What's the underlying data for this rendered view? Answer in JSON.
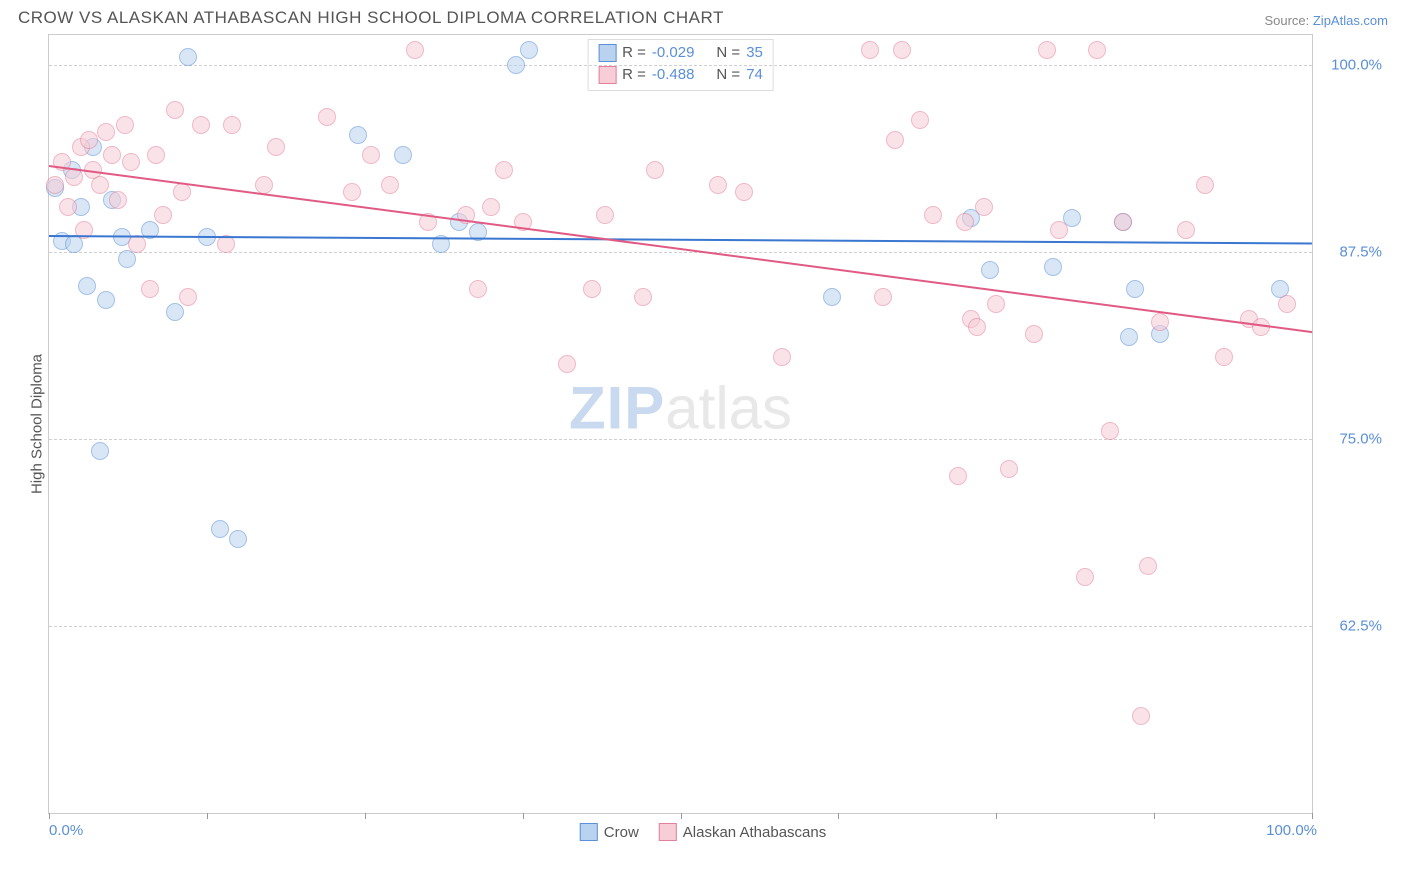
{
  "title": "CROW VS ALASKAN ATHABASCAN HIGH SCHOOL DIPLOMA CORRELATION CHART",
  "source_prefix": "Source: ",
  "source_link": "ZipAtlas.com",
  "y_axis_label": "High School Diploma",
  "watermark": {
    "part1": "ZIP",
    "part2": "atlas"
  },
  "chart": {
    "type": "scatter",
    "background_color": "#ffffff",
    "grid_color": "#d0d0d0",
    "border_color": "#cccccc",
    "xlim": [
      0,
      100
    ],
    "ylim": [
      50,
      102
    ],
    "x_ticks": [
      0,
      12.5,
      25,
      37.5,
      50,
      62.5,
      75,
      87.5,
      100
    ],
    "x_tick_labels": {
      "0": "0.0%",
      "100": "100.0%"
    },
    "y_gridlines": [
      62.5,
      75.0,
      87.5,
      100.0
    ],
    "y_tick_labels": [
      "62.5%",
      "75.0%",
      "87.5%",
      "100.0%"
    ],
    "point_radius": 9,
    "point_opacity": 0.55,
    "series": [
      {
        "name": "Crow",
        "fill": "#b9d2f0",
        "stroke": "#5b8fd6",
        "R": "-0.029",
        "N": "35",
        "trend": {
          "y_at_x0": 88.6,
          "y_at_x100": 88.1,
          "color": "#3a77d0",
          "width": 2
        },
        "points": [
          [
            0.5,
            91.8
          ],
          [
            1.0,
            88.2
          ],
          [
            1.8,
            93.0
          ],
          [
            2.0,
            88.0
          ],
          [
            2.5,
            90.5
          ],
          [
            3.0,
            85.2
          ],
          [
            3.5,
            94.5
          ],
          [
            4.0,
            74.2
          ],
          [
            4.5,
            84.3
          ],
          [
            5.0,
            91.0
          ],
          [
            5.8,
            88.5
          ],
          [
            6.2,
            87.0
          ],
          [
            8.0,
            89.0
          ],
          [
            10.0,
            83.5
          ],
          [
            11.0,
            100.5
          ],
          [
            12.5,
            88.5
          ],
          [
            13.5,
            69.0
          ],
          [
            15.0,
            68.3
          ],
          [
            24.5,
            95.3
          ],
          [
            28.0,
            94.0
          ],
          [
            31.0,
            88.0
          ],
          [
            32.5,
            89.5
          ],
          [
            34.0,
            88.8
          ],
          [
            37.0,
            100.0
          ],
          [
            38.0,
            101.0
          ],
          [
            62.0,
            84.5
          ],
          [
            73.0,
            89.8
          ],
          [
            74.5,
            86.3
          ],
          [
            79.5,
            86.5
          ],
          [
            81.0,
            89.8
          ],
          [
            85.5,
            81.8
          ],
          [
            85.0,
            89.5
          ],
          [
            86.0,
            85.0
          ],
          [
            88.0,
            82.0
          ],
          [
            97.5,
            85.0
          ]
        ]
      },
      {
        "name": "Alaskan Athabascans",
        "fill": "#f7cdd7",
        "stroke": "#e37f9a",
        "R": "-0.488",
        "N": "74",
        "trend": {
          "y_at_x0": 93.3,
          "y_at_x100": 82.2,
          "color": "#e05a84",
          "width": 2
        },
        "points": [
          [
            0.5,
            92.0
          ],
          [
            1.0,
            93.5
          ],
          [
            1.5,
            90.5
          ],
          [
            2.0,
            92.5
          ],
          [
            2.5,
            94.5
          ],
          [
            2.8,
            89.0
          ],
          [
            3.2,
            95.0
          ],
          [
            3.5,
            93.0
          ],
          [
            4.0,
            92.0
          ],
          [
            4.5,
            95.5
          ],
          [
            5.0,
            94.0
          ],
          [
            5.5,
            91.0
          ],
          [
            6.0,
            96.0
          ],
          [
            6.5,
            93.5
          ],
          [
            7.0,
            88.0
          ],
          [
            8.0,
            85.0
          ],
          [
            8.5,
            94.0
          ],
          [
            9.0,
            90.0
          ],
          [
            10.0,
            97.0
          ],
          [
            10.5,
            91.5
          ],
          [
            11.0,
            84.5
          ],
          [
            12.0,
            96.0
          ],
          [
            14.0,
            88.0
          ],
          [
            14.5,
            96.0
          ],
          [
            17.0,
            92.0
          ],
          [
            18.0,
            94.5
          ],
          [
            22.0,
            96.5
          ],
          [
            24.0,
            91.5
          ],
          [
            25.5,
            94.0
          ],
          [
            27.0,
            92.0
          ],
          [
            29.0,
            101.0
          ],
          [
            30.0,
            89.5
          ],
          [
            33.0,
            90.0
          ],
          [
            34.0,
            85.0
          ],
          [
            35.0,
            90.5
          ],
          [
            36.0,
            93.0
          ],
          [
            37.5,
            89.5
          ],
          [
            41.0,
            80.0
          ],
          [
            43.0,
            85.0
          ],
          [
            44.0,
            90.0
          ],
          [
            47.0,
            84.5
          ],
          [
            48.0,
            93.0
          ],
          [
            53.0,
            92.0
          ],
          [
            55.0,
            91.5
          ],
          [
            58.0,
            80.5
          ],
          [
            65.0,
            101.0
          ],
          [
            66.0,
            84.5
          ],
          [
            67.0,
            95.0
          ],
          [
            67.5,
            101.0
          ],
          [
            69.0,
            96.3
          ],
          [
            70.0,
            90.0
          ],
          [
            72.0,
            72.5
          ],
          [
            72.5,
            89.5
          ],
          [
            73.0,
            83.0
          ],
          [
            73.5,
            82.5
          ],
          [
            74.0,
            90.5
          ],
          [
            75.0,
            84.0
          ],
          [
            76.0,
            73.0
          ],
          [
            78.0,
            82.0
          ],
          [
            79.0,
            101.0
          ],
          [
            80.0,
            89.0
          ],
          [
            82.0,
            65.8
          ],
          [
            83.0,
            101.0
          ],
          [
            84.0,
            75.5
          ],
          [
            85.0,
            89.5
          ],
          [
            86.5,
            56.5
          ],
          [
            87.0,
            66.5
          ],
          [
            88.0,
            82.8
          ],
          [
            90.0,
            89.0
          ],
          [
            91.5,
            92.0
          ],
          [
            93.0,
            80.5
          ],
          [
            95.0,
            83.0
          ],
          [
            96.0,
            82.5
          ],
          [
            98.0,
            84.0
          ]
        ]
      }
    ]
  },
  "legend_top": {
    "R_label": "R =",
    "N_label": "N ="
  },
  "legend_bottom": [
    {
      "label": "Crow",
      "fill": "#b9d2f0",
      "stroke": "#5b8fd6"
    },
    {
      "label": "Alaskan Athabascans",
      "fill": "#f7cdd7",
      "stroke": "#e37f9a"
    }
  ],
  "colors": {
    "title_text": "#555555",
    "axis_text": "#555555",
    "value_text": "#5b8fd6"
  }
}
